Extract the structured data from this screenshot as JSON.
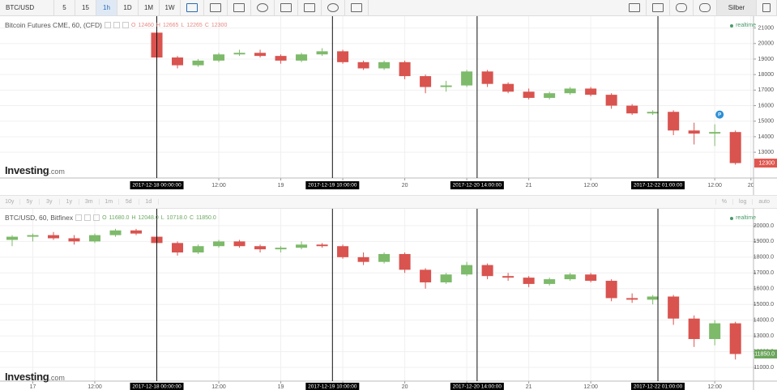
{
  "toolbar": {
    "symbol": "BTC/USD",
    "intervals": [
      "5",
      "15",
      "1h",
      "1D",
      "1M",
      "1W"
    ],
    "user": "Silber"
  },
  "range_bar": {
    "ranges": [
      "10y",
      "5y",
      "3y",
      "1y",
      "3m",
      "1m",
      "5d",
      "1d"
    ],
    "options": [
      "%",
      "log",
      "auto"
    ]
  },
  "chart_data": [
    {
      "type": "candlestick",
      "title": "Bitcoin Futures CME, 60, (CFD)",
      "ohlc_legend": [
        {
          "name": "O",
          "value": "12460"
        },
        {
          "name": "H",
          "value": "12665"
        },
        {
          "name": "L",
          "value": "12265"
        },
        {
          "name": "C",
          "value": "12300"
        }
      ],
      "legend_color": "#e58a84",
      "status": "realtime",
      "event_flag": "P",
      "watermark": "Investing",
      "watermark_suffix": ".com",
      "up_color": "#7dba6a",
      "down_color": "#d9534f",
      "grid": true,
      "x": [
        0,
        4,
        8,
        12,
        16,
        20,
        24,
        28,
        32,
        36,
        40,
        44,
        48,
        52,
        56,
        60,
        64,
        68,
        72,
        76,
        80,
        84,
        88,
        92,
        96,
        100,
        104,
        108,
        112
      ],
      "open": [
        20700,
        19100,
        18600,
        18900,
        19300,
        19400,
        19200,
        18900,
        19300,
        19500,
        18800,
        18400,
        18800,
        17900,
        17200,
        17300,
        18200,
        17400,
        16900,
        16500,
        16800,
        17100,
        16700,
        16000,
        15500,
        15600,
        14400,
        14200,
        14300
      ],
      "high": [
        20900,
        19200,
        19000,
        19400,
        19600,
        19600,
        19300,
        19400,
        19700,
        19600,
        18900,
        18900,
        18900,
        18000,
        17600,
        18300,
        18300,
        17500,
        17100,
        16900,
        17200,
        17200,
        16800,
        16100,
        15700,
        15700,
        14900,
        14800,
        14400
      ],
      "low": [
        19000,
        18400,
        18500,
        18800,
        19200,
        19100,
        18700,
        18800,
        19200,
        18700,
        18300,
        18300,
        17700,
        16800,
        16900,
        17200,
        17200,
        16800,
        16400,
        16400,
        16700,
        16600,
        15800,
        15400,
        15400,
        14100,
        13500,
        13400,
        12200
      ],
      "close": [
        19100,
        18600,
        18900,
        19300,
        19400,
        19200,
        18900,
        19300,
        19500,
        18800,
        18400,
        18800,
        17900,
        17200,
        17300,
        18200,
        17400,
        16900,
        16500,
        16800,
        17100,
        16700,
        16000,
        15500,
        15600,
        14400,
        14200,
        14300,
        12300
      ],
      "xlim": [
        -30.35,
        115.5
      ],
      "xticks": [
        {
          "value": 12,
          "label": "12:00"
        },
        {
          "value": 24,
          "label": "19"
        },
        {
          "value": 36,
          "label": "12:00"
        },
        {
          "value": 48,
          "label": "20"
        },
        {
          "value": 60,
          "label": "12:00"
        },
        {
          "value": 72,
          "label": "21"
        },
        {
          "value": 84,
          "label": "12:00"
        },
        {
          "value": 108,
          "label": "12:00"
        },
        {
          "value": 115,
          "label": "20"
        }
      ],
      "ylim": [
        11600,
        21500
      ],
      "yticks": [
        13000,
        14000,
        15000,
        16000,
        17000,
        18000,
        19000,
        20000,
        21000
      ],
      "markers": [
        {
          "x": 0,
          "label": "2017-12-18 00:00:00"
        },
        {
          "x": 34,
          "label": "2017-12-19 10:00:00"
        },
        {
          "x": 62,
          "label": "2017-12-20 14:00:00"
        },
        {
          "x": 97,
          "label": "2017-12-22 01:00:00"
        }
      ],
      "last_price": {
        "value": 12300,
        "label": "12300",
        "color": "#e0574f"
      }
    },
    {
      "type": "candlestick",
      "title": "BTC/USD, 60, Bitfinex",
      "ohlc_legend": [
        {
          "name": "O",
          "value": "11680.0"
        },
        {
          "name": "H",
          "value": "12048.0"
        },
        {
          "name": "L",
          "value": "10718.0"
        },
        {
          "name": "C",
          "value": "11850.0"
        }
      ],
      "legend_color": "#6aa860",
      "status": "realtime",
      "watermark": "Investing",
      "watermark_suffix": ".com",
      "up_color": "#7dba6a",
      "down_color": "#d9534f",
      "grid": true,
      "x": [
        -28,
        -24,
        -20,
        -16,
        -12,
        -8,
        -4,
        0,
        4,
        8,
        12,
        16,
        20,
        24,
        28,
        32,
        36,
        40,
        44,
        48,
        52,
        56,
        60,
        64,
        68,
        72,
        76,
        80,
        84,
        88,
        92,
        96,
        100,
        104,
        108,
        112
      ],
      "open": [
        19100,
        19300,
        19400,
        19200,
        19000,
        19400,
        19700,
        19300,
        18900,
        18300,
        18700,
        19000,
        18700,
        18500,
        18600,
        18800,
        18700,
        18000,
        17700,
        18200,
        17200,
        16400,
        16900,
        17500,
        16800,
        16700,
        16300,
        16600,
        16900,
        16500,
        15400,
        15300,
        15500,
        14100,
        12800,
        13800
      ],
      "high": [
        19400,
        19500,
        19600,
        19400,
        19500,
        19800,
        19800,
        19400,
        19000,
        18800,
        19100,
        19100,
        18800,
        18700,
        19000,
        18900,
        18800,
        18300,
        18300,
        18300,
        17300,
        17000,
        17700,
        17600,
        17000,
        16800,
        16700,
        17000,
        17000,
        16600,
        15700,
        15600,
        15600,
        14300,
        14000,
        13900
      ],
      "low": [
        18700,
        19000,
        19100,
        18800,
        18900,
        19300,
        19400,
        18800,
        18100,
        18200,
        18600,
        18600,
        18300,
        18300,
        18500,
        18600,
        17900,
        17500,
        17600,
        17000,
        16000,
        16300,
        16800,
        16600,
        16500,
        16100,
        16200,
        16500,
        16400,
        15200,
        15100,
        15000,
        13700,
        12300,
        12400,
        11500
      ],
      "close": [
        19300,
        19400,
        19200,
        19000,
        19400,
        19700,
        19500,
        18900,
        18300,
        18700,
        19000,
        18700,
        18500,
        18600,
        18800,
        18700,
        18000,
        17700,
        18200,
        17200,
        16400,
        16900,
        17500,
        16800,
        16700,
        16300,
        16600,
        16900,
        16500,
        15400,
        15300,
        15500,
        14100,
        12800,
        13800,
        11850
      ],
      "xlim": [
        -30.35,
        115.5
      ],
      "xticks": [
        {
          "value": -24,
          "label": "17"
        },
        {
          "value": -12,
          "label": "12:00"
        },
        {
          "value": 12,
          "label": "12:00"
        },
        {
          "value": 24,
          "label": "19"
        },
        {
          "value": 36,
          "label": "12:00"
        },
        {
          "value": 48,
          "label": "20"
        },
        {
          "value": 60,
          "label": "12:00"
        },
        {
          "value": 72,
          "label": "21"
        },
        {
          "value": 84,
          "label": "12:00"
        },
        {
          "value": 108,
          "label": "12:00"
        }
      ],
      "ylim": [
        10180,
        20870
      ],
      "yticks": [
        {
          "value": 11000,
          "label": "11000.0"
        },
        {
          "value": 12000,
          "label": "12000.0"
        },
        {
          "value": 13000,
          "label": "13000.0"
        },
        {
          "value": 14000,
          "label": "14000.0"
        },
        {
          "value": 15000,
          "label": "15000.0"
        },
        {
          "value": 16000,
          "label": "16000.0"
        },
        {
          "value": 17000,
          "label": "17000.0"
        },
        {
          "value": 18000,
          "label": "18000.0"
        },
        {
          "value": 19000,
          "label": "19000.0"
        },
        {
          "value": 20000,
          "label": "20000.0"
        }
      ],
      "markers": [
        {
          "x": 0,
          "label": "2017-12-18 00:00:00"
        },
        {
          "x": 34,
          "label": "2017-12-19 10:00:00"
        },
        {
          "x": 62,
          "label": "2017-12-20 14:00:00"
        },
        {
          "x": 97,
          "label": "2017-12-22 01:00:00"
        }
      ],
      "last_price": {
        "value": 11850,
        "label": "11850.0",
        "color": "#6ba55c"
      }
    }
  ]
}
